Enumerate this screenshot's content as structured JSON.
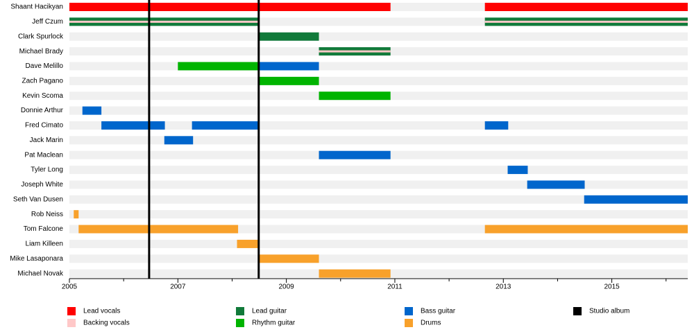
{
  "chart_data": {
    "type": "timeline",
    "xlim": [
      2005,
      2016.4
    ],
    "xticks": [
      2005,
      2007,
      2009,
      2011,
      2013,
      2015
    ],
    "minor_xticks": [
      2006,
      2008,
      2010,
      2012,
      2014,
      2016
    ],
    "roles": [
      {
        "name": "Lead vocals",
        "color": "#ff0000"
      },
      {
        "name": "Backing vocals",
        "color": "#ffc8c8"
      },
      {
        "name": "Lead guitar",
        "color": "#117a3a"
      },
      {
        "name": "Rhythm guitar",
        "color": "#00b400"
      },
      {
        "name": "Bass guitar",
        "color": "#0066cc"
      },
      {
        "name": "Drums",
        "color": "#f8a12b"
      },
      {
        "name": "Studio album",
        "color": "#000000"
      }
    ],
    "albums": [
      2006.47,
      2008.49
    ],
    "members": [
      {
        "name": "Shaant Hacikyan",
        "spans": [
          {
            "role": "Lead vocals",
            "start": 2005,
            "end": 2010.92
          },
          {
            "role": "Lead vocals",
            "start": 2012.66,
            "end": 2016.4
          }
        ]
      },
      {
        "name": "Jeff Czum",
        "spans": [
          {
            "role": "Lead guitar",
            "secondary": "Backing vocals",
            "start": 2005,
            "end": 2008.5
          },
          {
            "role": "Lead guitar",
            "secondary": "Backing vocals",
            "start": 2012.66,
            "end": 2016.4
          }
        ]
      },
      {
        "name": "Clark Spurlock",
        "spans": [
          {
            "role": "Lead guitar",
            "start": 2008.5,
            "end": 2009.6
          }
        ]
      },
      {
        "name": "Michael Brady",
        "spans": [
          {
            "role": "Lead guitar",
            "secondary": "Backing vocals",
            "start": 2009.6,
            "end": 2010.92
          }
        ]
      },
      {
        "name": "Dave Melillo",
        "spans": [
          {
            "role": "Rhythm guitar",
            "start": 2007.0,
            "end": 2008.5
          },
          {
            "role": "Bass guitar",
            "start": 2008.5,
            "end": 2009.6
          }
        ]
      },
      {
        "name": "Zach Pagano",
        "spans": [
          {
            "role": "Rhythm guitar",
            "start": 2008.5,
            "end": 2009.6
          }
        ]
      },
      {
        "name": "Kevin Scoma",
        "spans": [
          {
            "role": "Rhythm guitar",
            "start": 2009.6,
            "end": 2010.92
          }
        ]
      },
      {
        "name": "Donnie Arthur",
        "spans": [
          {
            "role": "Bass guitar",
            "start": 2005.24,
            "end": 2005.59
          }
        ]
      },
      {
        "name": "Fred Cimato",
        "spans": [
          {
            "role": "Bass guitar",
            "start": 2005.59,
            "end": 2006.76
          },
          {
            "role": "Bass guitar",
            "start": 2007.26,
            "end": 2008.5
          },
          {
            "role": "Bass guitar",
            "start": 2012.66,
            "end": 2013.09
          }
        ]
      },
      {
        "name": "Jack Marin",
        "spans": [
          {
            "role": "Bass guitar",
            "start": 2006.75,
            "end": 2007.28
          }
        ]
      },
      {
        "name": "Pat Maclean",
        "spans": [
          {
            "role": "Bass guitar",
            "start": 2009.6,
            "end": 2010.92
          }
        ]
      },
      {
        "name": "Tyler Long",
        "spans": [
          {
            "role": "Bass guitar",
            "start": 2013.08,
            "end": 2013.45
          }
        ]
      },
      {
        "name": "Joseph White",
        "spans": [
          {
            "role": "Bass guitar",
            "start": 2013.44,
            "end": 2014.5
          }
        ]
      },
      {
        "name": "Seth Van Dusen",
        "spans": [
          {
            "role": "Bass guitar",
            "start": 2014.49,
            "end": 2016.4
          }
        ]
      },
      {
        "name": "Rob Neiss",
        "spans": [
          {
            "role": "Drums",
            "start": 2005.08,
            "end": 2005.17
          }
        ]
      },
      {
        "name": "Tom Falcone",
        "spans": [
          {
            "role": "Drums",
            "start": 2005.17,
            "end": 2008.11
          },
          {
            "role": "Drums",
            "start": 2012.66,
            "end": 2016.4
          }
        ]
      },
      {
        "name": "Liam Killeen",
        "spans": [
          {
            "role": "Drums",
            "start": 2008.09,
            "end": 2008.5
          }
        ]
      },
      {
        "name": "Mike Lasaponara",
        "spans": [
          {
            "role": "Drums",
            "start": 2008.5,
            "end": 2009.6
          }
        ]
      },
      {
        "name": "Michael Novak",
        "spans": [
          {
            "role": "Drums",
            "start": 2009.6,
            "end": 2010.92
          }
        ]
      }
    ]
  }
}
